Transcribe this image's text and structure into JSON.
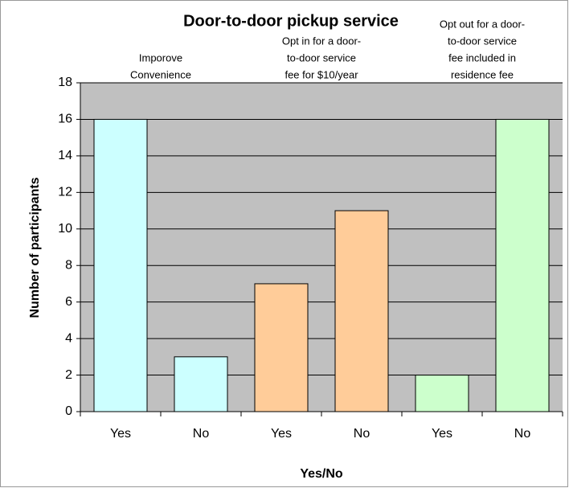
{
  "chart_data": {
    "type": "bar",
    "title": "Door-to-door pickup service",
    "annotations": [
      [
        "Imporove",
        "Convenience"
      ],
      [
        "Opt in for a door-",
        "to-door service",
        "fee for $10/year"
      ],
      [
        "Opt out for a door-",
        "to-door service",
        "fee included in",
        "residence fee"
      ]
    ],
    "categories": [
      "Yes",
      "No",
      "Yes",
      "No",
      "Yes",
      "No"
    ],
    "values": [
      16,
      3,
      7,
      11,
      2,
      16
    ],
    "colors": [
      "#ccffff",
      "#ccffff",
      "#ffcc99",
      "#ffcc99",
      "#ccffcc",
      "#ccffcc"
    ],
    "xlabel": "Yes/No",
    "ylabel": "Number of participants",
    "ylim": [
      0,
      18
    ],
    "yticks": [
      0,
      2,
      4,
      6,
      8,
      10,
      12,
      14,
      16,
      18
    ],
    "grid": true
  }
}
